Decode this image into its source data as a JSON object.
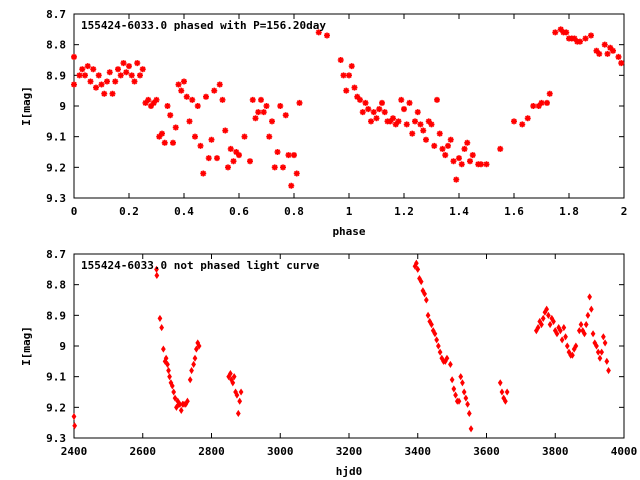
{
  "chart_data": [
    {
      "type": "scatter",
      "title": "155424-6033.0 phased with P=156.20day",
      "xlabel": "phase",
      "ylabel": "I[mag]",
      "xlim": [
        0,
        2
      ],
      "ylim": [
        8.7,
        9.3
      ],
      "y_inverted": true,
      "x_ticks": [
        {
          "v": 0,
          "t": "0"
        },
        {
          "v": 0.2,
          "t": "0.2"
        },
        {
          "v": 0.4,
          "t": "0.4"
        },
        {
          "v": 0.6,
          "t": "0.6"
        },
        {
          "v": 0.8,
          "t": "0.8"
        },
        {
          "v": 1,
          "t": "1"
        },
        {
          "v": 1.2,
          "t": "1.2"
        },
        {
          "v": 1.4,
          "t": "1.4"
        },
        {
          "v": 1.6,
          "t": "1.6"
        },
        {
          "v": 1.8,
          "t": "1.8"
        },
        {
          "v": 2,
          "t": "2"
        }
      ],
      "y_ticks": [
        {
          "v": 8.7,
          "t": "8.7"
        },
        {
          "v": 8.8,
          "t": "8.8"
        },
        {
          "v": 8.9,
          "t": "8.9"
        },
        {
          "v": 9,
          "t": "9"
        },
        {
          "v": 9.1,
          "t": "9.1"
        },
        {
          "v": 9.2,
          "t": "9.2"
        },
        {
          "v": 9.3,
          "t": "9.3"
        }
      ],
      "marker": "star",
      "color": "#ff0000",
      "points": [
        [
          0.0,
          8.84
        ],
        [
          0.0,
          8.93
        ],
        [
          0.02,
          8.9
        ],
        [
          0.03,
          8.88
        ],
        [
          0.04,
          8.9
        ],
        [
          0.05,
          8.87
        ],
        [
          0.06,
          8.92
        ],
        [
          0.07,
          8.88
        ],
        [
          0.08,
          8.94
        ],
        [
          0.09,
          8.9
        ],
        [
          0.1,
          8.93
        ],
        [
          0.11,
          8.96
        ],
        [
          0.12,
          8.92
        ],
        [
          0.13,
          8.89
        ],
        [
          0.14,
          8.96
        ],
        [
          0.15,
          8.92
        ],
        [
          0.16,
          8.88
        ],
        [
          0.17,
          8.9
        ],
        [
          0.18,
          8.86
        ],
        [
          0.19,
          8.89
        ],
        [
          0.2,
          8.87
        ],
        [
          0.21,
          8.9
        ],
        [
          0.22,
          8.92
        ],
        [
          0.23,
          8.86
        ],
        [
          0.24,
          8.9
        ],
        [
          0.25,
          8.88
        ],
        [
          0.26,
          8.99
        ],
        [
          0.27,
          8.98
        ],
        [
          0.28,
          9.0
        ],
        [
          0.29,
          8.99
        ],
        [
          0.3,
          8.98
        ],
        [
          0.31,
          9.1
        ],
        [
          0.32,
          9.09
        ],
        [
          0.33,
          9.12
        ],
        [
          0.34,
          9.0
        ],
        [
          0.35,
          9.03
        ],
        [
          0.36,
          9.12
        ],
        [
          0.37,
          9.07
        ],
        [
          0.38,
          8.93
        ],
        [
          0.39,
          8.95
        ],
        [
          0.4,
          8.92
        ],
        [
          0.41,
          8.97
        ],
        [
          0.42,
          9.05
        ],
        [
          0.43,
          8.98
        ],
        [
          0.44,
          9.1
        ],
        [
          0.45,
          9.0
        ],
        [
          0.46,
          9.13
        ],
        [
          0.47,
          9.22
        ],
        [
          0.48,
          8.97
        ],
        [
          0.49,
          9.17
        ],
        [
          0.5,
          9.11
        ],
        [
          0.51,
          8.95
        ],
        [
          0.52,
          9.17
        ],
        [
          0.53,
          8.93
        ],
        [
          0.54,
          8.98
        ],
        [
          0.55,
          9.08
        ],
        [
          0.56,
          9.2
        ],
        [
          0.57,
          9.14
        ],
        [
          0.58,
          9.18
        ],
        [
          0.59,
          9.15
        ],
        [
          0.6,
          9.16
        ],
        [
          0.62,
          9.1
        ],
        [
          0.64,
          9.18
        ],
        [
          0.65,
          8.98
        ],
        [
          0.66,
          9.04
        ],
        [
          0.67,
          9.02
        ],
        [
          0.68,
          8.98
        ],
        [
          0.69,
          9.02
        ],
        [
          0.7,
          9.0
        ],
        [
          0.71,
          9.1
        ],
        [
          0.72,
          9.05
        ],
        [
          0.73,
          9.2
        ],
        [
          0.74,
          9.15
        ],
        [
          0.75,
          9.0
        ],
        [
          0.76,
          9.2
        ],
        [
          0.77,
          9.03
        ],
        [
          0.78,
          9.16
        ],
        [
          0.79,
          9.26
        ],
        [
          0.8,
          9.16
        ],
        [
          0.81,
          9.22
        ],
        [
          0.82,
          8.99
        ],
        [
          0.89,
          8.76
        ],
        [
          0.92,
          8.77
        ],
        [
          0.97,
          8.85
        ],
        [
          0.98,
          8.9
        ],
        [
          0.99,
          8.95
        ],
        [
          1.0,
          8.9
        ],
        [
          1.01,
          8.87
        ],
        [
          1.02,
          8.94
        ],
        [
          1.03,
          8.97
        ],
        [
          1.04,
          8.98
        ],
        [
          1.05,
          9.02
        ],
        [
          1.06,
          8.99
        ],
        [
          1.07,
          9.01
        ],
        [
          1.08,
          9.05
        ],
        [
          1.09,
          9.02
        ],
        [
          1.1,
          9.04
        ],
        [
          1.11,
          9.01
        ],
        [
          1.12,
          8.99
        ],
        [
          1.13,
          9.02
        ],
        [
          1.14,
          9.05
        ],
        [
          1.15,
          9.05
        ],
        [
          1.16,
          9.04
        ],
        [
          1.17,
          9.06
        ],
        [
          1.18,
          9.05
        ],
        [
          1.19,
          8.98
        ],
        [
          1.2,
          9.01
        ],
        [
          1.21,
          9.06
        ],
        [
          1.22,
          8.99
        ],
        [
          1.23,
          9.09
        ],
        [
          1.24,
          9.05
        ],
        [
          1.25,
          9.02
        ],
        [
          1.26,
          9.06
        ],
        [
          1.27,
          9.08
        ],
        [
          1.28,
          9.11
        ],
        [
          1.29,
          9.05
        ],
        [
          1.3,
          9.06
        ],
        [
          1.31,
          9.13
        ],
        [
          1.32,
          8.98
        ],
        [
          1.33,
          9.09
        ],
        [
          1.34,
          9.14
        ],
        [
          1.35,
          9.16
        ],
        [
          1.36,
          9.13
        ],
        [
          1.37,
          9.11
        ],
        [
          1.38,
          9.18
        ],
        [
          1.39,
          9.24
        ],
        [
          1.4,
          9.17
        ],
        [
          1.41,
          9.19
        ],
        [
          1.42,
          9.14
        ],
        [
          1.43,
          9.12
        ],
        [
          1.44,
          9.18
        ],
        [
          1.45,
          9.16
        ],
        [
          1.47,
          9.19
        ],
        [
          1.48,
          9.19
        ],
        [
          1.5,
          9.19
        ],
        [
          1.55,
          9.14
        ],
        [
          1.6,
          9.05
        ],
        [
          1.63,
          9.06
        ],
        [
          1.65,
          9.04
        ],
        [
          1.67,
          9.0
        ],
        [
          1.69,
          9.0
        ],
        [
          1.7,
          8.99
        ],
        [
          1.72,
          8.99
        ],
        [
          1.73,
          8.96
        ],
        [
          1.75,
          8.76
        ],
        [
          1.77,
          8.75
        ],
        [
          1.78,
          8.76
        ],
        [
          1.79,
          8.76
        ],
        [
          1.8,
          8.78
        ],
        [
          1.81,
          8.78
        ],
        [
          1.82,
          8.78
        ],
        [
          1.83,
          8.79
        ],
        [
          1.84,
          8.79
        ],
        [
          1.86,
          8.78
        ],
        [
          1.88,
          8.77
        ],
        [
          1.9,
          8.82
        ],
        [
          1.91,
          8.83
        ],
        [
          1.93,
          8.8
        ],
        [
          1.94,
          8.83
        ],
        [
          1.95,
          8.81
        ],
        [
          1.96,
          8.82
        ],
        [
          1.98,
          8.84
        ],
        [
          1.99,
          8.86
        ]
      ]
    },
    {
      "type": "scatter",
      "title": "155424-6033.0 not phased light curve",
      "xlabel": "hjd0",
      "ylabel": "I[mag]",
      "xlim": [
        2400,
        4000
      ],
      "ylim": [
        8.7,
        9.3
      ],
      "y_inverted": true,
      "x_ticks": [
        {
          "v": 2400,
          "t": "2400"
        },
        {
          "v": 2600,
          "t": "2600"
        },
        {
          "v": 2800,
          "t": "2800"
        },
        {
          "v": 3000,
          "t": "3000"
        },
        {
          "v": 3200,
          "t": "3200"
        },
        {
          "v": 3400,
          "t": "3400"
        },
        {
          "v": 3600,
          "t": "3600"
        },
        {
          "v": 3800,
          "t": "3800"
        },
        {
          "v": 4000,
          "t": "4000"
        }
      ],
      "y_ticks": [
        {
          "v": 8.7,
          "t": "8.7"
        },
        {
          "v": 8.8,
          "t": "8.8"
        },
        {
          "v": 8.9,
          "t": "8.9"
        },
        {
          "v": 9,
          "t": "9"
        },
        {
          "v": 9.1,
          "t": "9.1"
        },
        {
          "v": 9.2,
          "t": "9.2"
        },
        {
          "v": 9.3,
          "t": "9.3"
        }
      ],
      "marker": "diamond",
      "color": "#ff0000",
      "points": [
        [
          2400,
          9.23
        ],
        [
          2402,
          9.26
        ],
        [
          2640,
          8.75
        ],
        [
          2641,
          8.77
        ],
        [
          2650,
          8.91
        ],
        [
          2655,
          8.94
        ],
        [
          2660,
          9.01
        ],
        [
          2665,
          9.05
        ],
        [
          2668,
          9.04
        ],
        [
          2672,
          9.06
        ],
        [
          2675,
          9.08
        ],
        [
          2678,
          9.1
        ],
        [
          2682,
          9.12
        ],
        [
          2686,
          9.13
        ],
        [
          2690,
          9.15
        ],
        [
          2694,
          9.17
        ],
        [
          2698,
          9.2
        ],
        [
          2702,
          9.18
        ],
        [
          2705,
          9.19
        ],
        [
          2708,
          9.19
        ],
        [
          2712,
          9.21
        ],
        [
          2716,
          9.19
        ],
        [
          2720,
          9.19
        ],
        [
          2725,
          9.19
        ],
        [
          2730,
          9.18
        ],
        [
          2738,
          9.11
        ],
        [
          2742,
          9.08
        ],
        [
          2748,
          9.06
        ],
        [
          2752,
          9.04
        ],
        [
          2756,
          9.01
        ],
        [
          2760,
          8.99
        ],
        [
          2764,
          9.0
        ],
        [
          2850,
          9.1
        ],
        [
          2855,
          9.09
        ],
        [
          2858,
          9.11
        ],
        [
          2862,
          9.12
        ],
        [
          2866,
          9.1
        ],
        [
          2870,
          9.15
        ],
        [
          2874,
          9.16
        ],
        [
          2878,
          9.22
        ],
        [
          2882,
          9.18
        ],
        [
          2886,
          9.15
        ],
        [
          3392,
          8.74
        ],
        [
          3396,
          8.73
        ],
        [
          3400,
          8.75
        ],
        [
          3405,
          8.78
        ],
        [
          3410,
          8.79
        ],
        [
          3415,
          8.82
        ],
        [
          3420,
          8.83
        ],
        [
          3425,
          8.85
        ],
        [
          3430,
          8.9
        ],
        [
          3435,
          8.92
        ],
        [
          3440,
          8.93
        ],
        [
          3445,
          8.95
        ],
        [
          3450,
          8.96
        ],
        [
          3455,
          8.98
        ],
        [
          3460,
          9.0
        ],
        [
          3465,
          9.02
        ],
        [
          3470,
          9.04
        ],
        [
          3475,
          9.05
        ],
        [
          3480,
          9.05
        ],
        [
          3485,
          9.04
        ],
        [
          3495,
          9.06
        ],
        [
          3500,
          9.11
        ],
        [
          3505,
          9.14
        ],
        [
          3510,
          9.16
        ],
        [
          3515,
          9.18
        ],
        [
          3520,
          9.18
        ],
        [
          3525,
          9.1
        ],
        [
          3530,
          9.12
        ],
        [
          3535,
          9.15
        ],
        [
          3540,
          9.17
        ],
        [
          3545,
          9.19
        ],
        [
          3550,
          9.22
        ],
        [
          3555,
          9.27
        ],
        [
          3640,
          9.12
        ],
        [
          3645,
          9.15
        ],
        [
          3650,
          9.17
        ],
        [
          3655,
          9.18
        ],
        [
          3660,
          9.15
        ],
        [
          3745,
          8.95
        ],
        [
          3750,
          8.94
        ],
        [
          3755,
          8.92
        ],
        [
          3760,
          8.93
        ],
        [
          3765,
          8.91
        ],
        [
          3770,
          8.89
        ],
        [
          3775,
          8.88
        ],
        [
          3780,
          8.9
        ],
        [
          3785,
          8.93
        ],
        [
          3790,
          8.91
        ],
        [
          3795,
          8.92
        ],
        [
          3800,
          8.95
        ],
        [
          3805,
          8.96
        ],
        [
          3810,
          8.94
        ],
        [
          3815,
          8.95
        ],
        [
          3820,
          8.98
        ],
        [
          3825,
          8.94
        ],
        [
          3830,
          8.97
        ],
        [
          3835,
          9.0
        ],
        [
          3840,
          9.02
        ],
        [
          3845,
          9.03
        ],
        [
          3850,
          9.03
        ],
        [
          3855,
          9.01
        ],
        [
          3860,
          9.0
        ],
        [
          3870,
          8.95
        ],
        [
          3875,
          8.93
        ],
        [
          3880,
          8.95
        ],
        [
          3885,
          8.96
        ],
        [
          3890,
          8.93
        ],
        [
          3895,
          8.9
        ],
        [
          3900,
          8.84
        ],
        [
          3905,
          8.88
        ],
        [
          3910,
          8.96
        ],
        [
          3915,
          8.99
        ],
        [
          3920,
          9.0
        ],
        [
          3925,
          9.02
        ],
        [
          3930,
          9.04
        ],
        [
          3935,
          9.02
        ],
        [
          3940,
          8.97
        ],
        [
          3945,
          8.99
        ],
        [
          3950,
          9.05
        ],
        [
          3955,
          9.08
        ]
      ]
    }
  ]
}
